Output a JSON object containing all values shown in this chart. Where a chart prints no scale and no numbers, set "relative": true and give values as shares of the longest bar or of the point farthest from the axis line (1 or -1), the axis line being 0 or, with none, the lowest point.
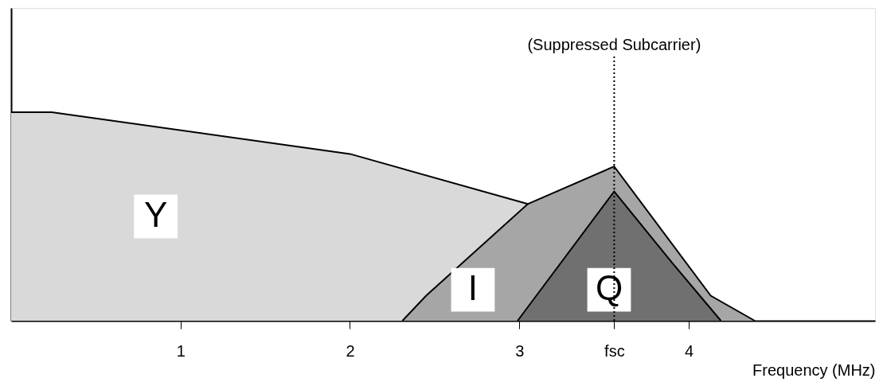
{
  "chart_data": {
    "type": "area",
    "relative": true,
    "xlabel": "Frequency (MHz)",
    "xlim": [
      0,
      5.1
    ],
    "xticks": [
      1,
      2,
      3,
      {
        "value": 3.56,
        "label": "fsc"
      },
      4
    ],
    "series": [
      {
        "name": "Y",
        "color": "#d9d9d9",
        "x": [
          0,
          0.24,
          2,
          3.05
        ],
        "values": [
          1,
          1,
          0.8,
          0.56
        ]
      },
      {
        "name": "I",
        "color": "#a6a6a6",
        "x": [
          2.31,
          2.45,
          3.05,
          3.56,
          4.13,
          4.39
        ],
        "values": [
          0,
          0.12,
          0.56,
          0.74,
          0.12,
          0
        ]
      },
      {
        "name": "Q",
        "color": "#707070",
        "x": [
          2.99,
          3.56,
          3.9,
          4.19
        ],
        "values": [
          0,
          0.62,
          0.28,
          0
        ]
      }
    ],
    "ref_lines": [
      {
        "axis": "x",
        "value": 3.56,
        "label": "(Suppressed Subcarrier)",
        "line_style": "dotted"
      }
    ],
    "grid": false
  }
}
